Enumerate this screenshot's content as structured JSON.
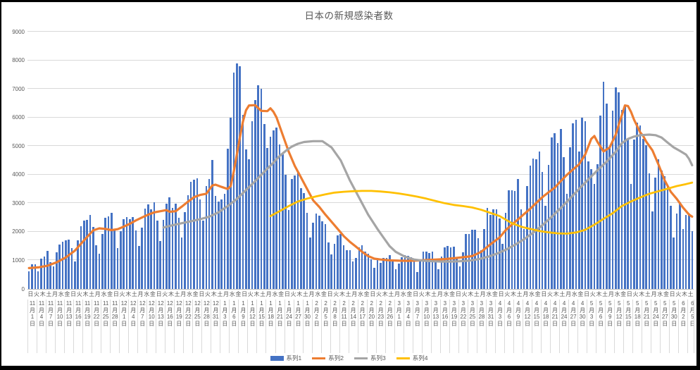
{
  "title": "日本の新規感染者数",
  "colors": {
    "grid": "#D9D9D9",
    "axis_line": "#BFBFBF",
    "text": "#595959",
    "frame_border": "#000000",
    "bar": "#4472C4",
    "line2": "#ED7D31",
    "line3": "#A5A5A5",
    "line4": "#FFC000"
  },
  "chart_data": {
    "type": "combo",
    "title": "日本の新規感染者数",
    "grid": "horizontal",
    "legend_position": "bottom",
    "y_axis": {
      "min": 0,
      "max": 9000,
      "step": 1000,
      "tick_labels": [
        "0",
        "1000",
        "2000",
        "3000",
        "4000",
        "5000",
        "6000",
        "7000",
        "8000",
        "9000"
      ]
    },
    "x_axis": {
      "days_total": 218,
      "weekday_row_interval_days": 2,
      "weekday_row": "日火木土月水金日火木土月水金日火木土月水金日火木土月水金日火木土月水金日火木土月水金日火木土月水金日火木土月水金日火木土月水金日火木土月水金日火木土月水金日火木土月水金日火木土月水金日火木土月水金日火木土月水金日火木土",
      "date_label_interval_days": 3,
      "date_labels": [
        "11月1日",
        "11月4日",
        "11月7日",
        "11月10日",
        "11月13日",
        "11月16日",
        "11月19日",
        "11月22日",
        "11月25日",
        "11月28日",
        "12月1日",
        "12月4日",
        "12月7日",
        "12月10日",
        "12月13日",
        "12月16日",
        "12月19日",
        "12月22日",
        "12月25日",
        "12月28日",
        "12月31日",
        "1月3日",
        "1月6日",
        "1月9日",
        "1月12日",
        "1月15日",
        "1月18日",
        "1月21日",
        "1月24日",
        "1月27日",
        "1月30日",
        "2月2日",
        "2月5日",
        "2月8日",
        "2月11日",
        "2月14日",
        "2月17日",
        "2月20日",
        "2月23日",
        "2月26日",
        "3月1日",
        "3月4日",
        "3月7日",
        "3月10日",
        "3月13日",
        "3月16日",
        "3月19日",
        "3月22日",
        "3月25日",
        "3月28日",
        "3月31日",
        "4月3日",
        "4月6日",
        "4月9日",
        "4月12日",
        "4月15日",
        "4月18日",
        "4月21日",
        "4月24日",
        "4月27日",
        "4月30日",
        "5月3日",
        "5月6日",
        "5月9日",
        "5月12日",
        "5月15日",
        "5月18日",
        "5月21日",
        "5月24日",
        "5月27日",
        "5月30日",
        "6月2日",
        "6月5日"
      ]
    },
    "series": [
      {
        "name": "系列1",
        "type": "bar",
        "color": "#4472C4",
        "values": [
          614,
          871,
          867,
          620,
          1050,
          1141,
          1331,
          940,
          780,
          1284,
          1543,
          1661,
          1704,
          1738,
          1440,
          962,
          1699,
          2201,
          2386,
          2418,
          2596,
          2168,
          1520,
          1229,
          1930,
          2501,
          2529,
          2674,
          2066,
          1438,
          2030,
          2430,
          2518,
          2442,
          2508,
          2058,
          1515,
          2152,
          2811,
          2972,
          2790,
          3041,
          2387,
          1680,
          2410,
          2994,
          3211,
          2829,
          2982,
          2501,
          1806,
          2688,
          3271,
          3742,
          3832,
          3881,
          3127,
          2403,
          3607,
          3852,
          4520,
          3246,
          3059,
          3127,
          3325,
          4915,
          6001,
          7570,
          7882,
          7790,
          6097,
          4876,
          4527,
          5870,
          6609,
          7133,
          7014,
          5759,
          4925,
          5320,
          5549,
          5653,
          5045,
          4717,
          3990,
          2764,
          3853,
          3971,
          4133,
          3539,
          3344,
          2673,
          1792,
          2324,
          2631,
          2576,
          2372,
          2279,
          1632,
          1216,
          1570,
          1887,
          1933,
          1536,
          1362,
          1364,
          965,
          1077,
          1448,
          1538,
          1301,
          1234,
          1032,
          739,
          1085,
          922,
          1076,
          1083,
          1180,
          999,
          698,
          888,
          1121,
          1173,
          1148,
          1121,
          999,
          599,
          972,
          1316,
          1320,
          1271,
          1319,
          988,
          695,
          1133,
          1449,
          1501,
          1463,
          1480,
          1121,
          800,
          1288,
          1918,
          1917,
          2064,
          2071,
          1785,
          1348,
          2087,
          2843,
          2602,
          2778,
          2782,
          2470,
          1571,
          2654,
          3448,
          3452,
          3438,
          3854,
          2777,
          2091,
          3594,
          4309,
          4570,
          4532,
          4802,
          4093,
          2905,
          4342,
          5291,
          5452,
          5113,
          5605,
          4605,
          3318,
          4965,
          5792,
          5918,
          4808,
          5986,
          5878,
          4470,
          4199,
          3680,
          4365,
          6058,
          7244,
          6493,
          4938,
          6243,
          7060,
          6884,
          6263,
          6421,
          5261,
          3680,
          5230,
          5815,
          5721,
          5250,
          5040,
          4048,
          2721,
          3901,
          4536,
          4141,
          3955,
          3604,
          2900,
          1791,
          2644,
          3042,
          2092,
          2602,
          2645,
          2023
        ]
      },
      {
        "name": "系列2",
        "type": "line",
        "color": "#ED7D31",
        "stroke_width": 3.2,
        "points": [
          [
            0,
            730
          ],
          [
            3,
            755
          ],
          [
            6,
            810
          ],
          [
            9,
            930
          ],
          [
            12,
            1100
          ],
          [
            15,
            1340
          ],
          [
            18,
            1700
          ],
          [
            21,
            2050
          ],
          [
            23,
            2120
          ],
          [
            25,
            2100
          ],
          [
            27,
            2060
          ],
          [
            29,
            2090
          ],
          [
            31,
            2180
          ],
          [
            33,
            2280
          ],
          [
            35,
            2400
          ],
          [
            37,
            2500
          ],
          [
            39,
            2600
          ],
          [
            41,
            2680
          ],
          [
            43,
            2720
          ],
          [
            45,
            2760
          ],
          [
            46,
            2700
          ],
          [
            48,
            2720
          ],
          [
            50,
            2880
          ],
          [
            52,
            3050
          ],
          [
            54,
            3210
          ],
          [
            56,
            3290
          ],
          [
            58,
            3330
          ],
          [
            60,
            3620
          ],
          [
            61,
            3650
          ],
          [
            63,
            3570
          ],
          [
            65,
            3500
          ],
          [
            66,
            3600
          ],
          [
            67,
            4100
          ],
          [
            68,
            4700
          ],
          [
            69,
            5300
          ],
          [
            70,
            5850
          ],
          [
            71,
            6250
          ],
          [
            72,
            6420
          ],
          [
            74,
            6430
          ],
          [
            76,
            6230
          ],
          [
            78,
            6220
          ],
          [
            79,
            6320
          ],
          [
            80,
            6200
          ],
          [
            81,
            6000
          ],
          [
            83,
            5400
          ],
          [
            85,
            4800
          ],
          [
            87,
            4300
          ],
          [
            89,
            3900
          ],
          [
            91,
            3500
          ],
          [
            93,
            3100
          ],
          [
            95,
            2870
          ],
          [
            97,
            2600
          ],
          [
            99,
            2350
          ],
          [
            101,
            2100
          ],
          [
            103,
            1850
          ],
          [
            105,
            1650
          ],
          [
            107,
            1480
          ],
          [
            109,
            1300
          ],
          [
            111,
            1150
          ],
          [
            113,
            1060
          ],
          [
            115,
            1030
          ],
          [
            118,
            1000
          ],
          [
            121,
            990
          ],
          [
            124,
            985
          ],
          [
            127,
            995
          ],
          [
            130,
            1010
          ],
          [
            133,
            1025
          ],
          [
            136,
            1045
          ],
          [
            139,
            1075
          ],
          [
            142,
            1110
          ],
          [
            145,
            1150
          ],
          [
            148,
            1300
          ],
          [
            151,
            1560
          ],
          [
            154,
            1800
          ],
          [
            156,
            2060
          ],
          [
            158,
            2250
          ],
          [
            160,
            2430
          ],
          [
            162,
            2620
          ],
          [
            164,
            2800
          ],
          [
            166,
            3010
          ],
          [
            168,
            3210
          ],
          [
            170,
            3380
          ],
          [
            172,
            3540
          ],
          [
            174,
            3770
          ],
          [
            176,
            3990
          ],
          [
            178,
            4180
          ],
          [
            180,
            4360
          ],
          [
            182,
            4700
          ],
          [
            184,
            5250
          ],
          [
            185,
            5350
          ],
          [
            186,
            5150
          ],
          [
            188,
            4810
          ],
          [
            190,
            4950
          ],
          [
            192,
            5400
          ],
          [
            193,
            5750
          ],
          [
            195,
            6420
          ],
          [
            196,
            6400
          ],
          [
            197,
            6200
          ],
          [
            198,
            5920
          ],
          [
            200,
            5480
          ],
          [
            201,
            5350
          ],
          [
            202,
            5150
          ],
          [
            204,
            4850
          ],
          [
            206,
            4350
          ],
          [
            208,
            3800
          ],
          [
            210,
            3400
          ],
          [
            212,
            3150
          ],
          [
            214,
            2850
          ],
          [
            216,
            2600
          ],
          [
            217,
            2530
          ]
        ]
      },
      {
        "name": "系列3",
        "type": "line",
        "color": "#A5A5A5",
        "stroke_width": 3.2,
        "points": [
          [
            44,
            2150
          ],
          [
            47,
            2230
          ],
          [
            50,
            2300
          ],
          [
            53,
            2370
          ],
          [
            56,
            2440
          ],
          [
            59,
            2530
          ],
          [
            62,
            2680
          ],
          [
            65,
            2900
          ],
          [
            68,
            3150
          ],
          [
            71,
            3460
          ],
          [
            74,
            3770
          ],
          [
            77,
            4100
          ],
          [
            80,
            4420
          ],
          [
            82,
            4650
          ],
          [
            84,
            4830
          ],
          [
            86,
            4980
          ],
          [
            88,
            5080
          ],
          [
            90,
            5140
          ],
          [
            93,
            5170
          ],
          [
            96,
            5170
          ],
          [
            99,
            4950
          ],
          [
            102,
            4500
          ],
          [
            105,
            3800
          ],
          [
            108,
            3200
          ],
          [
            111,
            2600
          ],
          [
            114,
            2100
          ],
          [
            116,
            1800
          ],
          [
            118,
            1500
          ],
          [
            120,
            1300
          ],
          [
            123,
            1130
          ],
          [
            126,
            1030
          ],
          [
            129,
            990
          ],
          [
            132,
            970
          ],
          [
            135,
            960
          ],
          [
            138,
            960
          ],
          [
            141,
            970
          ],
          [
            144,
            990
          ],
          [
            147,
            1040
          ],
          [
            150,
            1120
          ],
          [
            153,
            1230
          ],
          [
            156,
            1370
          ],
          [
            159,
            1540
          ],
          [
            162,
            1740
          ],
          [
            165,
            1970
          ],
          [
            168,
            2230
          ],
          [
            171,
            2520
          ],
          [
            174,
            2830
          ],
          [
            177,
            3160
          ],
          [
            180,
            3500
          ],
          [
            183,
            3830
          ],
          [
            186,
            4150
          ],
          [
            189,
            4450
          ],
          [
            192,
            4800
          ],
          [
            194,
            5100
          ],
          [
            196,
            5250
          ],
          [
            198,
            5330
          ],
          [
            200,
            5380
          ],
          [
            203,
            5400
          ],
          [
            205,
            5380
          ],
          [
            207,
            5300
          ],
          [
            209,
            5120
          ],
          [
            211,
            4950
          ],
          [
            213,
            4830
          ],
          [
            215,
            4700
          ],
          [
            216,
            4550
          ],
          [
            217,
            4330
          ]
        ]
      },
      {
        "name": "系列4",
        "type": "line",
        "color": "#FFC000",
        "stroke_width": 2.8,
        "points": [
          [
            79,
            2550
          ],
          [
            82,
            2720
          ],
          [
            85,
            2900
          ],
          [
            88,
            3060
          ],
          [
            91,
            3160
          ],
          [
            94,
            3240
          ],
          [
            97,
            3310
          ],
          [
            100,
            3370
          ],
          [
            103,
            3400
          ],
          [
            106,
            3420
          ],
          [
            109,
            3430
          ],
          [
            112,
            3430
          ],
          [
            115,
            3410
          ],
          [
            118,
            3380
          ],
          [
            121,
            3340
          ],
          [
            124,
            3290
          ],
          [
            127,
            3230
          ],
          [
            130,
            3160
          ],
          [
            133,
            3080
          ],
          [
            136,
            3000
          ],
          [
            139,
            2940
          ],
          [
            142,
            2900
          ],
          [
            145,
            2850
          ],
          [
            148,
            2770
          ],
          [
            151,
            2660
          ],
          [
            154,
            2550
          ],
          [
            158,
            2300
          ],
          [
            161,
            2180
          ],
          [
            164,
            2100
          ],
          [
            167,
            2030
          ],
          [
            170,
            1980
          ],
          [
            173,
            1945
          ],
          [
            176,
            1935
          ],
          [
            179,
            1975
          ],
          [
            182,
            2070
          ],
          [
            185,
            2250
          ],
          [
            188,
            2450
          ],
          [
            191,
            2650
          ],
          [
            194,
            2900
          ],
          [
            197,
            3060
          ],
          [
            200,
            3200
          ],
          [
            203,
            3330
          ],
          [
            206,
            3420
          ],
          [
            209,
            3510
          ],
          [
            212,
            3600
          ],
          [
            215,
            3670
          ],
          [
            217,
            3720
          ]
        ]
      }
    ]
  }
}
